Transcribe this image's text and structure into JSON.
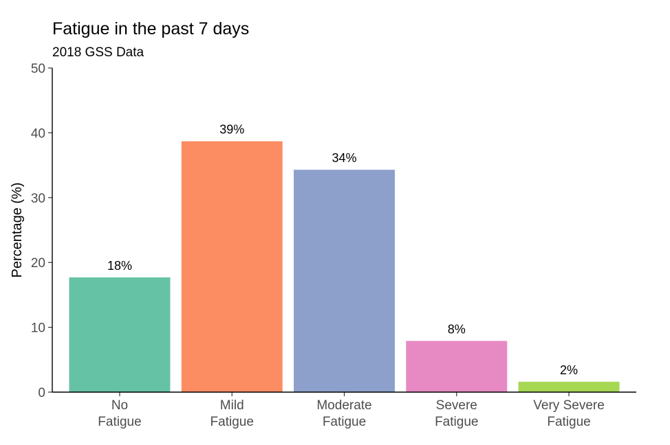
{
  "chart_data": {
    "type": "bar",
    "title": "Fatigue in the past 7 days",
    "subtitle": "2018 GSS Data",
    "ylabel": "Percentage (%)",
    "xlabel": "",
    "ylim": [
      0,
      50
    ],
    "yticks": [
      0,
      10,
      20,
      30,
      40,
      50
    ],
    "grid": false,
    "legend": "none",
    "categories": [
      [
        "No",
        "Fatigue"
      ],
      [
        "Mild",
        "Fatigue"
      ],
      [
        "Moderate",
        "Fatigue"
      ],
      [
        "Severe",
        "Fatigue"
      ],
      [
        "Very Severe",
        "Fatigue"
      ]
    ],
    "values": [
      17.7,
      38.7,
      34.3,
      7.9,
      1.6
    ],
    "data_labels": [
      "18%",
      "39%",
      "34%",
      "8%",
      "2%"
    ],
    "colors": [
      "#66c2a5",
      "#fc8d62",
      "#8da0cb",
      "#e78ac3",
      "#a6d854"
    ]
  }
}
